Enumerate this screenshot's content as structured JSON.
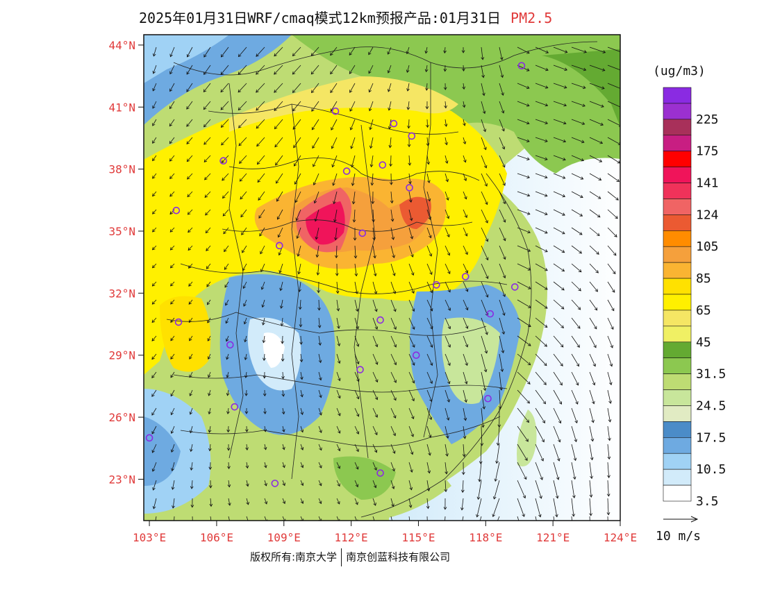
{
  "title": {
    "text": "2025年01月31日WRF/cmaq模式12km预报产品:01月31日",
    "pollutant": "PM2.5"
  },
  "map": {
    "lon_range": [
      102.75,
      124
    ],
    "lat_range": [
      21,
      44.5
    ],
    "lat_ticks": [
      {
        "value": 44,
        "label": "44°N"
      },
      {
        "value": 41,
        "label": "41°N"
      },
      {
        "value": 38,
        "label": "38°N"
      },
      {
        "value": 35,
        "label": "35°N"
      },
      {
        "value": 32,
        "label": "32°N"
      },
      {
        "value": 29,
        "label": "29°N"
      },
      {
        "value": 26,
        "label": "26°N"
      },
      {
        "value": 23,
        "label": "23°N"
      }
    ],
    "lon_ticks": [
      {
        "value": 103,
        "label": "103°E"
      },
      {
        "value": 106,
        "label": "106°E"
      },
      {
        "value": 109,
        "label": "109°E"
      },
      {
        "value": 112,
        "label": "112°E"
      },
      {
        "value": 115,
        "label": "115°E"
      },
      {
        "value": 118,
        "label": "118°E"
      },
      {
        "value": 121,
        "label": "121°E"
      },
      {
        "value": 124,
        "label": "124°E"
      }
    ],
    "cities": [
      {
        "lon": 119.6,
        "lat": 43.0
      },
      {
        "lon": 111.3,
        "lat": 40.8
      },
      {
        "lon": 113.9,
        "lat": 40.2
      },
      {
        "lon": 114.7,
        "lat": 39.6
      },
      {
        "lon": 106.3,
        "lat": 38.4
      },
      {
        "lon": 111.8,
        "lat": 37.9
      },
      {
        "lon": 113.4,
        "lat": 38.2
      },
      {
        "lon": 114.6,
        "lat": 37.1
      },
      {
        "lon": 104.2,
        "lat": 36.0
      },
      {
        "lon": 112.5,
        "lat": 34.9
      },
      {
        "lon": 108.8,
        "lat": 34.3
      },
      {
        "lon": 115.8,
        "lat": 32.4
      },
      {
        "lon": 117.1,
        "lat": 32.8
      },
      {
        "lon": 119.3,
        "lat": 32.3
      },
      {
        "lon": 118.2,
        "lat": 31.0
      },
      {
        "lon": 104.3,
        "lat": 30.6
      },
      {
        "lon": 113.3,
        "lat": 30.7
      },
      {
        "lon": 106.6,
        "lat": 29.5
      },
      {
        "lon": 114.9,
        "lat": 29.0
      },
      {
        "lon": 112.4,
        "lat": 28.3
      },
      {
        "lon": 118.1,
        "lat": 26.9
      },
      {
        "lon": 106.8,
        "lat": 26.5
      },
      {
        "lon": 103.0,
        "lat": 25.0
      },
      {
        "lon": 113.3,
        "lat": 23.3
      },
      {
        "lon": 108.6,
        "lat": 22.8
      }
    ]
  },
  "colorbar": {
    "unit": "(ug/m3)",
    "bins": [
      {
        "color": "#8a2be2",
        "label": ""
      },
      {
        "color": "#9b30d0",
        "label": "225"
      },
      {
        "color": "#a8305a",
        "label": ""
      },
      {
        "color": "#c81e82",
        "label": "175"
      },
      {
        "color": "#ff0000",
        "label": ""
      },
      {
        "color": "#f0145a",
        "label": "141"
      },
      {
        "color": "#f0325a",
        "label": ""
      },
      {
        "color": "#f06464",
        "label": "124"
      },
      {
        "color": "#eb5a32",
        "label": ""
      },
      {
        "color": "#ff8c00",
        "label": "105"
      },
      {
        "color": "#f5a03c",
        "label": ""
      },
      {
        "color": "#fab432",
        "label": "85"
      },
      {
        "color": "#ffe100",
        "label": ""
      },
      {
        "color": "#fff000",
        "label": "65"
      },
      {
        "color": "#f5e664",
        "label": ""
      },
      {
        "color": "#f0f064",
        "label": "45"
      },
      {
        "color": "#64aa32",
        "label": ""
      },
      {
        "color": "#8cc850",
        "label": "31.5"
      },
      {
        "color": "#bedc73",
        "label": ""
      },
      {
        "color": "#c8e69b",
        "label": "24.5"
      },
      {
        "color": "#e1ebc3",
        "label": ""
      },
      {
        "color": "#4b8cc8",
        "label": "17.5"
      },
      {
        "color": "#6eaae1",
        "label": ""
      },
      {
        "color": "#a0d2f5",
        "label": "10.5"
      },
      {
        "color": "#d2ebfa",
        "label": ""
      },
      {
        "color": "#ffffff",
        "label": "3.5"
      }
    ]
  },
  "wind_legend": {
    "label": "10 m/s"
  },
  "footer": {
    "copyright": "版权所有:南京大学",
    "company": "南京创蓝科技有限公司"
  }
}
